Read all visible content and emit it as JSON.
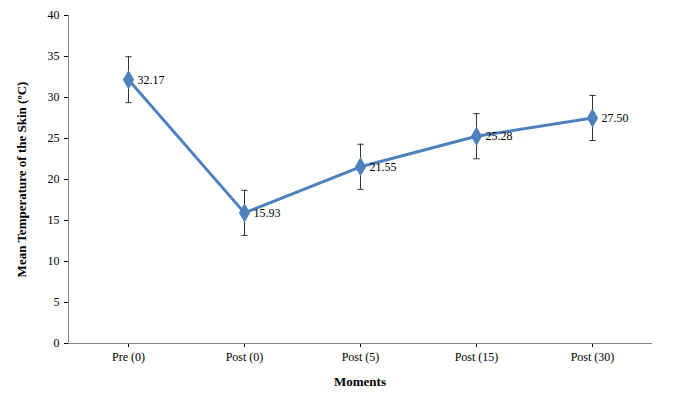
{
  "chart_data": {
    "type": "line",
    "x_label": "Moments",
    "y_label": "Mean Temperature of the Skin (ºC)",
    "categories": [
      "Pre (0)",
      "Post (0)",
      "Post (5)",
      "Post (15)",
      "Post (30)"
    ],
    "values": [
      32.17,
      15.93,
      21.55,
      25.28,
      27.5
    ],
    "value_labels": [
      "32.17",
      "15.93",
      "21.55",
      "25.28",
      "27.50"
    ],
    "errors": [
      2.8,
      2.75,
      2.75,
      2.75,
      2.75
    ],
    "color": "#4f81bd",
    "marker": "diamond",
    "data_labels": true,
    "grid": false,
    "ylim": [
      0,
      40
    ],
    "yticks": [
      0,
      5,
      10,
      15,
      20,
      25,
      30,
      35,
      40
    ]
  }
}
